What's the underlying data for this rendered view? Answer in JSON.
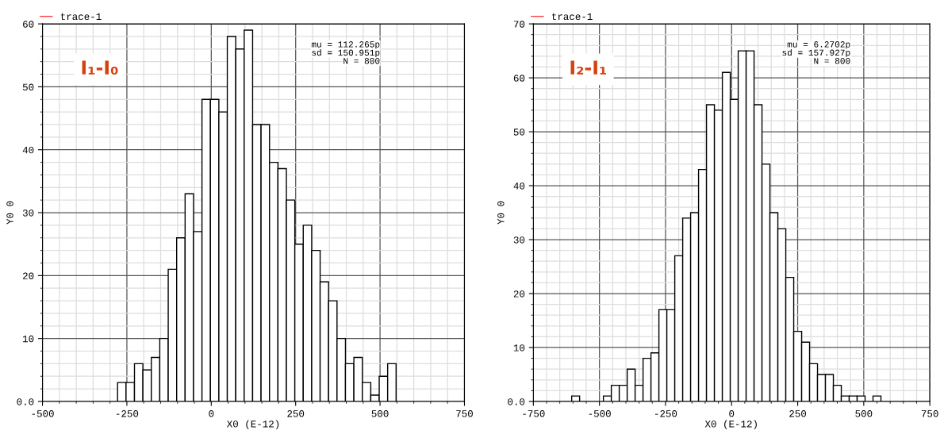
{
  "chart_data": [
    {
      "type": "histogram",
      "xlabel": "X0 (E-12)",
      "ylabel": "Y0 0",
      "bins": [
        -277.5,
        -252.5,
        -227.5,
        -202.5,
        -177.5,
        -152.5,
        -127.5,
        -102.5,
        -77.5,
        -52.5,
        -27.5,
        -2.5,
        22.5,
        47.5,
        72.5,
        97.5,
        122.5,
        147.5,
        172.5,
        197.5,
        222.5,
        247.5,
        272.5,
        297.5,
        322.5,
        347.5,
        372.5,
        397.5,
        422.5,
        447.5,
        472.5,
        497.5,
        522.5,
        547.5
      ],
      "series": [
        {
          "name": "trace-1",
          "color": "#ffffff",
          "values": [
            3,
            3,
            6,
            5,
            7,
            10,
            21,
            26,
            33,
            27,
            48,
            48,
            46,
            58,
            56,
            59,
            44,
            44,
            38,
            37,
            32,
            25,
            28,
            24,
            19,
            16,
            10,
            6,
            7,
            3,
            1,
            4,
            6
          ]
        }
      ],
      "xlim": [
        -500,
        750
      ],
      "xticks": [
        -500,
        -250,
        0,
        250,
        500,
        750
      ],
      "ylim": [
        0,
        60
      ],
      "yticks": [
        {
          "value": 0,
          "label": "0.0"
        },
        10,
        20,
        30,
        40,
        50,
        60
      ],
      "grid": true,
      "legend": "top left",
      "annotations": [
        "I₁-I₀",
        "mu = 112.265p",
        "sd = 150.951p",
        "N = 800"
      ]
    },
    {
      "type": "histogram",
      "xlabel": "X0 (E-12)",
      "ylabel": "Y0 0",
      "bins": [
        -605,
        -575,
        -545,
        -515,
        -485,
        -455,
        -425,
        -395,
        -365,
        -335,
        -305,
        -275,
        -245,
        -215,
        -185,
        -155,
        -125,
        -95,
        -65,
        -35,
        -5,
        25,
        55,
        85,
        115,
        145,
        175,
        205,
        235,
        265,
        295,
        325,
        355,
        385,
        415,
        445,
        475,
        505,
        535,
        565
      ],
      "series": [
        {
          "name": "trace-1",
          "color": "#ffffff",
          "values": [
            1,
            0,
            0,
            0,
            1,
            3,
            3,
            6,
            3,
            8,
            9,
            17,
            17,
            27,
            34,
            35,
            43,
            55,
            54,
            61,
            56,
            65,
            65,
            55,
            44,
            35,
            32,
            23,
            13,
            11,
            7,
            5,
            5,
            3,
            1,
            1,
            1,
            0,
            1
          ]
        }
      ],
      "xlim": [
        -750,
        750
      ],
      "xticks": [
        -750,
        -500,
        -250,
        0,
        250,
        500,
        750
      ],
      "ylim": [
        0,
        70
      ],
      "yticks": [
        {
          "value": 0,
          "label": "0.0"
        },
        10,
        20,
        30,
        40,
        50,
        60,
        70
      ],
      "grid": true,
      "legend": "top left",
      "annotations": [
        "I₂-I₁",
        "mu = 6.2702p",
        "sd = 157.927p",
        "N = 800"
      ]
    }
  ]
}
